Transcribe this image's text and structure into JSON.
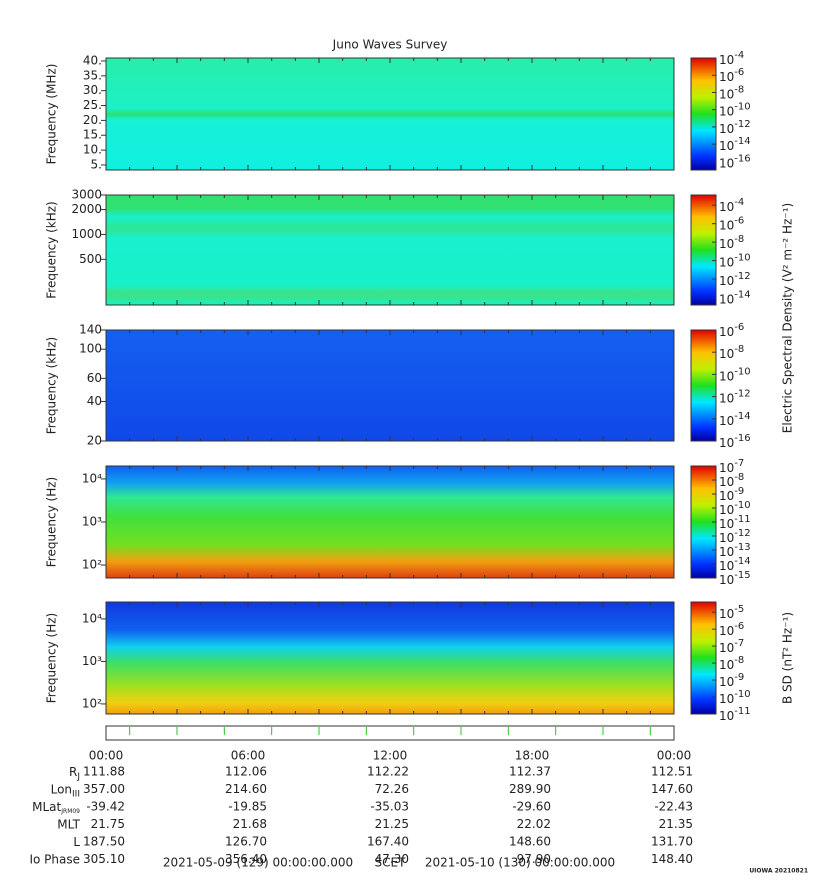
{
  "chart_data": [
    {
      "type": "heatmap",
      "title": "Juno Waves Survey",
      "ylabel": "Frequency (MHz)",
      "yscale": "linear",
      "ylim": [
        3.3,
        41
      ],
      "yticks": [
        {
          "value": 5,
          "label": "5."
        },
        {
          "value": 10,
          "label": "10."
        },
        {
          "value": 15,
          "label": "15."
        },
        {
          "value": 20,
          "label": "20."
        },
        {
          "value": 25,
          "label": "25."
        },
        {
          "value": 30,
          "label": "30."
        },
        {
          "value": 35,
          "label": "35."
        },
        {
          "value": 40,
          "label": "40."
        }
      ],
      "cbar_base": "10",
      "clim": [
        -17,
        -4
      ],
      "cticks": [
        -4,
        -6,
        -8,
        -10,
        -12,
        -14,
        -16
      ]
    },
    {
      "type": "heatmap",
      "ylabel": "Frequency (kHz)",
      "yscale": "log",
      "ylim": [
        140,
        3000
      ],
      "yticks": [
        500,
        1000,
        2000,
        3000
      ],
      "cbar_base": "10",
      "clim": [
        -14.8,
        -2.9
      ],
      "cticks": [
        -4,
        -6,
        -8,
        -10,
        -12,
        -14
      ],
      "cbar_label": "Electric Spectral Density (V² m⁻² Hz⁻¹)"
    },
    {
      "type": "heatmap",
      "ylabel": "Frequency (kHz)",
      "yscale": "log",
      "ylim": [
        20,
        140
      ],
      "yticks": [
        20,
        40,
        60,
        100,
        140
      ],
      "cbar_base": "10",
      "clim": [
        -16,
        -6
      ],
      "cticks": [
        -6,
        -8,
        -10,
        -12,
        -14,
        -16
      ]
    },
    {
      "type": "heatmap",
      "ylabel": "Frequency (Hz)",
      "yscale": "log",
      "ylim": [
        50,
        20000
      ],
      "yticks": [
        {
          "value": 100,
          "label": "10²"
        },
        {
          "value": 1000,
          "label": "10³"
        },
        {
          "value": 10000,
          "label": "10⁴"
        }
      ],
      "cbar_base": "10",
      "clim": [
        -15,
        -7
      ],
      "cticks": [
        -7,
        -8,
        -9,
        -10,
        -11,
        -12,
        -13,
        -14,
        -15
      ]
    },
    {
      "type": "heatmap",
      "ylabel": "Frequency (Hz)",
      "yscale": "log",
      "ylim": [
        58,
        25000
      ],
      "yticks": [
        {
          "value": 100,
          "label": "10²"
        },
        {
          "value": 1000,
          "label": "10³"
        },
        {
          "value": 10000,
          "label": "10⁴"
        }
      ],
      "cbar_base": "10",
      "clim": [
        -11,
        -4.4
      ],
      "cticks": [
        -5,
        -6,
        -7,
        -8,
        -9,
        -10,
        -11
      ],
      "cbar_label": "B SD (nT² Hz⁻¹)"
    }
  ],
  "ephemeris": {
    "times": [
      "00:00",
      "06:00",
      "12:00",
      "18:00",
      "00:00"
    ],
    "rows": [
      {
        "label": "R",
        "sub": "J",
        "values": [
          "111.88",
          "112.06",
          "112.22",
          "112.37",
          "112.51"
        ]
      },
      {
        "label": "Lon",
        "sub": "III",
        "values": [
          "357.00",
          "214.60",
          "72.26",
          "289.90",
          "147.60"
        ]
      },
      {
        "label": "MLat",
        "sub": "JRM09",
        "values": [
          "-39.42",
          "-19.85",
          "-35.03",
          "-29.60",
          "-22.43"
        ]
      },
      {
        "label": "MLT",
        "values": [
          "21.75",
          "21.68",
          "21.25",
          "22.02",
          "21.35"
        ]
      },
      {
        "label": "L",
        "values": [
          "187.50",
          "126.70",
          "167.40",
          "148.60",
          "131.70"
        ]
      },
      {
        "label": "Io Phase",
        "values": [
          "305.10",
          "356.40",
          "47.30",
          "97.90",
          "148.40"
        ]
      }
    ]
  },
  "footer": {
    "start": "2021-05-09 (129) 00:00:00.000",
    "mid": "SCET",
    "end": "2021-05-10 (130) 00:00:00.000"
  },
  "credit": "UIOWA 20210821"
}
